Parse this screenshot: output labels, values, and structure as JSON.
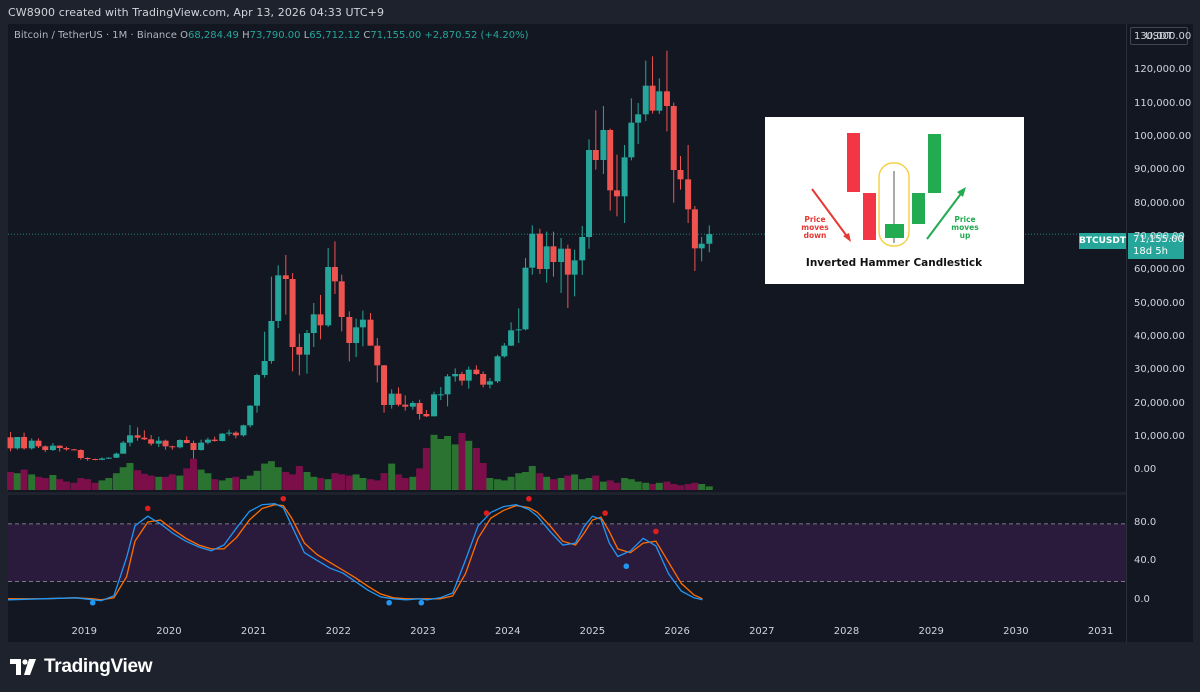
{
  "header": {
    "attribution": "CW8900 created with TradingView.com, Apr 13, 2026 04:33 UTC+9"
  },
  "legend": {
    "symbol": "Bitcoin / TetherUS · 1M · Binance",
    "o_label": "O",
    "o_value": "68,284.49",
    "h_label": "H",
    "h_value": "73,790.00",
    "l_label": "L",
    "l_value": "65,712.12",
    "c_label": "C",
    "c_value": "71,155.00",
    "change": "+2,870.52 (+4.20%)"
  },
  "currency": "USDT",
  "price_tag": {
    "ticker": "BTCUSDT",
    "price": "71,155.00",
    "countdown": "18d 5h"
  },
  "inset": {
    "title": "Inverted Hammer Candlestick",
    "left_label_1": "Price",
    "left_label_2": "moves",
    "left_label_3": "down",
    "right_label_1": "Price",
    "right_label_2": "moves",
    "right_label_3": "up"
  },
  "brand": {
    "name": "TradingView"
  },
  "colors": {
    "up": "#26a69a",
    "down": "#ef5350",
    "vol_up": "#2e7d32",
    "vol_down": "#880e4f",
    "k_line": "#2196f3",
    "d_line": "#ff6d00",
    "band_fill": "#2a1b3d"
  },
  "chart_data": [
    {
      "type": "candlestick",
      "interval": "1M",
      "y_ticks": [
        "130,000.00",
        "120,000.00",
        "110,000.00",
        "100,000.00",
        "90,000.00",
        "80,000.00",
        "70,000.00",
        "60,000.00",
        "50,000.00",
        "40,000.00",
        "30,000.00",
        "20,000.00",
        "10,000.00",
        "0.00"
      ],
      "ylim": [
        -5000,
        133000
      ],
      "x_ticks": [
        "2019",
        "2020",
        "2021",
        "2022",
        "2023",
        "2024",
        "2025",
        "2026",
        "2027",
        "2028",
        "2029",
        "2030",
        "2031"
      ],
      "xlim": [
        2018.1,
        2031.3
      ],
      "candles": [
        {
          "t": 2018.13,
          "o": 10200,
          "h": 11800,
          "l": 6000,
          "c": 6900
        },
        {
          "t": 2018.21,
          "o": 6900,
          "h": 10300,
          "l": 6500,
          "c": 10300
        },
        {
          "t": 2018.29,
          "o": 10300,
          "h": 11600,
          "l": 6500,
          "c": 6900
        },
        {
          "t": 2018.38,
          "o": 6900,
          "h": 9900,
          "l": 6500,
          "c": 9200
        },
        {
          "t": 2018.46,
          "o": 9200,
          "h": 9900,
          "l": 7000,
          "c": 7500
        },
        {
          "t": 2018.54,
          "o": 7500,
          "h": 7800,
          "l": 5800,
          "c": 6400
        },
        {
          "t": 2018.63,
          "o": 6400,
          "h": 8500,
          "l": 6100,
          "c": 7700
        },
        {
          "t": 2018.71,
          "o": 7700,
          "h": 7800,
          "l": 5900,
          "c": 7000
        },
        {
          "t": 2018.79,
          "o": 7000,
          "h": 7400,
          "l": 6200,
          "c": 6600
        },
        {
          "t": 2018.88,
          "o": 6600,
          "h": 6700,
          "l": 6300,
          "c": 6400
        },
        {
          "t": 2018.96,
          "o": 6400,
          "h": 6600,
          "l": 3500,
          "c": 4000
        },
        {
          "t": 2019.04,
          "o": 4000,
          "h": 4200,
          "l": 3200,
          "c": 3700
        },
        {
          "t": 2019.13,
          "o": 3700,
          "h": 3800,
          "l": 3300,
          "c": 3450
        },
        {
          "t": 2019.21,
          "o": 3450,
          "h": 4200,
          "l": 3350,
          "c": 3850
        },
        {
          "t": 2019.29,
          "o": 3850,
          "h": 4200,
          "l": 3700,
          "c": 4100
        },
        {
          "t": 2019.38,
          "o": 4100,
          "h": 5600,
          "l": 4000,
          "c": 5300
        },
        {
          "t": 2019.46,
          "o": 5300,
          "h": 9100,
          "l": 5300,
          "c": 8600
        },
        {
          "t": 2019.54,
          "o": 8600,
          "h": 13900,
          "l": 7500,
          "c": 10800
        },
        {
          "t": 2019.63,
          "o": 10800,
          "h": 13200,
          "l": 9200,
          "c": 10100
        },
        {
          "t": 2019.71,
          "o": 10100,
          "h": 12300,
          "l": 9400,
          "c": 9600
        },
        {
          "t": 2019.79,
          "o": 9600,
          "h": 10900,
          "l": 7700,
          "c": 8300
        },
        {
          "t": 2019.88,
          "o": 8300,
          "h": 10400,
          "l": 7300,
          "c": 9200
        },
        {
          "t": 2019.96,
          "o": 9200,
          "h": 9500,
          "l": 6500,
          "c": 7500
        },
        {
          "t": 2020.04,
          "o": 7500,
          "h": 7700,
          "l": 6500,
          "c": 7200
        },
        {
          "t": 2020.13,
          "o": 7200,
          "h": 9600,
          "l": 6900,
          "c": 9400
        },
        {
          "t": 2020.21,
          "o": 9400,
          "h": 10500,
          "l": 8400,
          "c": 8500
        },
        {
          "t": 2020.29,
          "o": 8500,
          "h": 9200,
          "l": 3800,
          "c": 6400
        },
        {
          "t": 2020.38,
          "o": 6400,
          "h": 9500,
          "l": 6200,
          "c": 8600
        },
        {
          "t": 2020.46,
          "o": 8600,
          "h": 10100,
          "l": 8100,
          "c": 9500
        },
        {
          "t": 2020.54,
          "o": 9500,
          "h": 10400,
          "l": 8900,
          "c": 9100
        },
        {
          "t": 2020.63,
          "o": 9100,
          "h": 11500,
          "l": 9000,
          "c": 11300
        },
        {
          "t": 2020.71,
          "o": 11300,
          "h": 12500,
          "l": 10600,
          "c": 11600
        },
        {
          "t": 2020.79,
          "o": 11600,
          "h": 12000,
          "l": 9900,
          "c": 10800
        },
        {
          "t": 2020.88,
          "o": 10800,
          "h": 14000,
          "l": 10400,
          "c": 13800
        },
        {
          "t": 2020.96,
          "o": 13800,
          "h": 19900,
          "l": 13200,
          "c": 19700
        },
        {
          "t": 2021.04,
          "o": 19700,
          "h": 29300,
          "l": 17600,
          "c": 28900
        },
        {
          "t": 2021.13,
          "o": 28900,
          "h": 41900,
          "l": 28100,
          "c": 33100
        },
        {
          "t": 2021.21,
          "o": 33100,
          "h": 58400,
          "l": 32300,
          "c": 45100
        },
        {
          "t": 2021.29,
          "o": 45100,
          "h": 61800,
          "l": 43000,
          "c": 58800
        },
        {
          "t": 2021.38,
          "o": 58800,
          "h": 64900,
          "l": 47000,
          "c": 57700
        },
        {
          "t": 2021.46,
          "o": 57700,
          "h": 59500,
          "l": 30000,
          "c": 37300
        },
        {
          "t": 2021.54,
          "o": 37300,
          "h": 41300,
          "l": 28800,
          "c": 35000
        },
        {
          "t": 2021.63,
          "o": 35000,
          "h": 42400,
          "l": 29300,
          "c": 41500
        },
        {
          "t": 2021.71,
          "o": 41500,
          "h": 50500,
          "l": 37300,
          "c": 47100
        },
        {
          "t": 2021.79,
          "o": 47100,
          "h": 52900,
          "l": 39600,
          "c": 43800
        },
        {
          "t": 2021.88,
          "o": 43800,
          "h": 67000,
          "l": 43300,
          "c": 61300
        },
        {
          "t": 2021.96,
          "o": 61300,
          "h": 69000,
          "l": 53200,
          "c": 57000
        },
        {
          "t": 2022.04,
          "o": 57000,
          "h": 59000,
          "l": 42000,
          "c": 46300
        },
        {
          "t": 2022.13,
          "o": 46300,
          "h": 48000,
          "l": 33000,
          "c": 38500
        },
        {
          "t": 2022.21,
          "o": 38500,
          "h": 45800,
          "l": 34300,
          "c": 43200
        },
        {
          "t": 2022.29,
          "o": 43200,
          "h": 48200,
          "l": 37500,
          "c": 45500
        },
        {
          "t": 2022.38,
          "o": 45500,
          "h": 47500,
          "l": 37700,
          "c": 37700
        },
        {
          "t": 2022.46,
          "o": 37700,
          "h": 40000,
          "l": 26700,
          "c": 31800
        },
        {
          "t": 2022.54,
          "o": 31800,
          "h": 31900,
          "l": 17600,
          "c": 19900
        },
        {
          "t": 2022.63,
          "o": 19900,
          "h": 24600,
          "l": 18800,
          "c": 23300
        },
        {
          "t": 2022.71,
          "o": 23300,
          "h": 25200,
          "l": 19500,
          "c": 20000
        },
        {
          "t": 2022.79,
          "o": 20000,
          "h": 22800,
          "l": 18200,
          "c": 19400
        },
        {
          "t": 2022.88,
          "o": 19400,
          "h": 21100,
          "l": 18500,
          "c": 20500
        },
        {
          "t": 2022.96,
          "o": 20500,
          "h": 21500,
          "l": 15500,
          "c": 17200
        },
        {
          "t": 2023.04,
          "o": 17200,
          "h": 18400,
          "l": 16300,
          "c": 16500
        },
        {
          "t": 2023.13,
          "o": 16500,
          "h": 23900,
          "l": 16500,
          "c": 23100
        },
        {
          "t": 2023.21,
          "o": 23100,
          "h": 25300,
          "l": 21400,
          "c": 23100
        },
        {
          "t": 2023.29,
          "o": 23100,
          "h": 29200,
          "l": 19500,
          "c": 28500
        },
        {
          "t": 2023.38,
          "o": 28500,
          "h": 30900,
          "l": 26900,
          "c": 29200
        },
        {
          "t": 2023.46,
          "o": 29200,
          "h": 29900,
          "l": 25800,
          "c": 27200
        },
        {
          "t": 2023.54,
          "o": 27200,
          "h": 31400,
          "l": 24800,
          "c": 30500
        },
        {
          "t": 2023.63,
          "o": 30500,
          "h": 31800,
          "l": 28900,
          "c": 29200
        },
        {
          "t": 2023.71,
          "o": 29200,
          "h": 30000,
          "l": 25200,
          "c": 26000
        },
        {
          "t": 2023.79,
          "o": 26000,
          "h": 28000,
          "l": 24900,
          "c": 27000
        },
        {
          "t": 2023.88,
          "o": 27000,
          "h": 35000,
          "l": 26500,
          "c": 34500
        },
        {
          "t": 2023.96,
          "o": 34500,
          "h": 38500,
          "l": 34100,
          "c": 37700
        },
        {
          "t": 2024.04,
          "o": 37700,
          "h": 44700,
          "l": 37600,
          "c": 42300
        },
        {
          "t": 2024.13,
          "o": 42300,
          "h": 48900,
          "l": 38500,
          "c": 42600
        },
        {
          "t": 2024.21,
          "o": 42600,
          "h": 64000,
          "l": 42300,
          "c": 61100
        },
        {
          "t": 2024.29,
          "o": 61100,
          "h": 73800,
          "l": 59000,
          "c": 71300
        },
        {
          "t": 2024.38,
          "o": 71300,
          "h": 72800,
          "l": 59200,
          "c": 60700
        },
        {
          "t": 2024.46,
          "o": 60700,
          "h": 71900,
          "l": 56600,
          "c": 67500
        },
        {
          "t": 2024.54,
          "o": 67500,
          "h": 71900,
          "l": 58400,
          "c": 62800
        },
        {
          "t": 2024.63,
          "o": 62800,
          "h": 70000,
          "l": 53500,
          "c": 66800
        },
        {
          "t": 2024.71,
          "o": 66800,
          "h": 68000,
          "l": 49000,
          "c": 59000
        },
        {
          "t": 2024.79,
          "o": 59000,
          "h": 66500,
          "l": 52500,
          "c": 63300
        },
        {
          "t": 2024.88,
          "o": 63300,
          "h": 73600,
          "l": 58900,
          "c": 70300
        },
        {
          "t": 2024.96,
          "o": 70300,
          "h": 99600,
          "l": 66800,
          "c": 96400
        },
        {
          "t": 2025.04,
          "o": 96400,
          "h": 108300,
          "l": 90500,
          "c": 93400
        },
        {
          "t": 2025.13,
          "o": 93400,
          "h": 109600,
          "l": 89200,
          "c": 102400
        },
        {
          "t": 2025.21,
          "o": 102400,
          "h": 102800,
          "l": 78200,
          "c": 84300
        },
        {
          "t": 2025.29,
          "o": 84300,
          "h": 95000,
          "l": 76500,
          "c": 82500
        },
        {
          "t": 2025.38,
          "o": 82500,
          "h": 97900,
          "l": 74500,
          "c": 94200
        },
        {
          "t": 2025.46,
          "o": 94200,
          "h": 111900,
          "l": 93300,
          "c": 104600
        },
        {
          "t": 2025.54,
          "o": 104600,
          "h": 110500,
          "l": 98200,
          "c": 107100
        },
        {
          "t": 2025.63,
          "o": 107100,
          "h": 123200,
          "l": 105100,
          "c": 115700
        },
        {
          "t": 2025.71,
          "o": 115700,
          "h": 124500,
          "l": 107300,
          "c": 108200
        },
        {
          "t": 2025.79,
          "o": 108200,
          "h": 117900,
          "l": 107200,
          "c": 114000
        },
        {
          "t": 2025.88,
          "o": 114000,
          "h": 126200,
          "l": 102000,
          "c": 109600
        },
        {
          "t": 2025.96,
          "o": 109600,
          "h": 110600,
          "l": 80600,
          "c": 90400
        },
        {
          "t": 2026.04,
          "o": 90400,
          "h": 94600,
          "l": 84500,
          "c": 87600
        },
        {
          "t": 2026.13,
          "o": 87600,
          "h": 97900,
          "l": 74500,
          "c": 78600
        },
        {
          "t": 2026.21,
          "o": 78600,
          "h": 79600,
          "l": 60100,
          "c": 66900
        },
        {
          "t": 2026.29,
          "o": 66900,
          "h": 70300,
          "l": 63000,
          "c": 68284
        },
        {
          "t": 2026.38,
          "o": 68284,
          "h": 73790,
          "l": 65712,
          "c": 71155
        }
      ],
      "volume_scale_max": 100,
      "volume_relative": [
        30,
        28,
        34,
        26,
        22,
        20,
        25,
        18,
        14,
        12,
        20,
        18,
        12,
        16,
        20,
        28,
        38,
        45,
        33,
        27,
        24,
        22,
        22,
        26,
        24,
        36,
        52,
        34,
        28,
        18,
        16,
        20,
        22,
        18,
        24,
        32,
        44,
        48,
        38,
        30,
        26,
        40,
        30,
        22,
        20,
        18,
        28,
        26,
        24,
        26,
        20,
        18,
        16,
        28,
        44,
        26,
        20,
        22,
        36,
        70,
        92,
        85,
        90,
        76,
        95,
        82,
        70,
        45,
        20,
        18,
        16,
        22,
        28,
        30,
        40,
        28,
        22,
        18,
        20,
        24,
        26,
        18,
        20,
        24,
        14,
        16,
        12,
        20,
        18,
        14,
        12,
        10,
        12,
        14,
        10,
        8,
        10,
        12,
        10,
        6,
        4
      ]
    },
    {
      "type": "line",
      "name_k": "",
      "y_ticks": [
        "80.0",
        "40.0",
        "0.0"
      ],
      "ylim": [
        -18,
        108
      ],
      "band": [
        20,
        80
      ],
      "x": [
        2018.1,
        2018.5,
        2018.9,
        2019.1,
        2019.2,
        2019.35,
        2019.5,
        2019.6,
        2019.75,
        2019.9,
        2020.05,
        2020.2,
        2020.35,
        2020.5,
        2020.65,
        2020.8,
        2020.95,
        2021.1,
        2021.25,
        2021.35,
        2021.45,
        2021.6,
        2021.75,
        2021.9,
        2022.05,
        2022.2,
        2022.35,
        2022.5,
        2022.65,
        2022.8,
        2022.95,
        2023.05,
        2023.2,
        2023.35,
        2023.5,
        2023.65,
        2023.8,
        2023.95,
        2024.1,
        2024.25,
        2024.35,
        2024.5,
        2024.65,
        2024.8,
        2024.9,
        2025.0,
        2025.1,
        2025.2,
        2025.3,
        2025.45,
        2025.6,
        2025.75,
        2025.9,
        2026.05,
        2026.2,
        2026.3
      ],
      "k_values": [
        1,
        2,
        3,
        1,
        0,
        5,
        45,
        78,
        88,
        80,
        70,
        62,
        56,
        52,
        58,
        76,
        93,
        100,
        101,
        97,
        78,
        50,
        42,
        34,
        29,
        20,
        11,
        4,
        2,
        1,
        2,
        1,
        3,
        8,
        42,
        78,
        92,
        98,
        100,
        95,
        88,
        72,
        58,
        60,
        77,
        88,
        85,
        60,
        46,
        52,
        65,
        57,
        28,
        10,
        3,
        1
      ],
      "d_values": [
        2,
        2,
        3,
        2,
        1,
        3,
        25,
        62,
        82,
        84,
        74,
        65,
        58,
        54,
        54,
        66,
        84,
        96,
        100,
        99,
        86,
        60,
        48,
        40,
        32,
        24,
        15,
        7,
        3,
        2,
        2,
        2,
        2,
        5,
        28,
        65,
        86,
        94,
        99,
        97,
        92,
        78,
        62,
        58,
        70,
        84,
        87,
        72,
        54,
        50,
        60,
        62,
        40,
        18,
        6,
        2
      ],
      "up_markers": [
        {
          "t": 2019.1,
          "v": 0
        },
        {
          "t": 2022.6,
          "v": 0
        },
        {
          "t": 2022.98,
          "v": 0
        },
        {
          "t": 2025.4,
          "v": 38
        }
      ],
      "down_markers": [
        {
          "t": 2019.75,
          "v": 92
        },
        {
          "t": 2021.35,
          "v": 102
        },
        {
          "t": 2023.75,
          "v": 87
        },
        {
          "t": 2024.25,
          "v": 102
        },
        {
          "t": 2025.15,
          "v": 87
        },
        {
          "t": 2025.75,
          "v": 68
        }
      ]
    }
  ]
}
